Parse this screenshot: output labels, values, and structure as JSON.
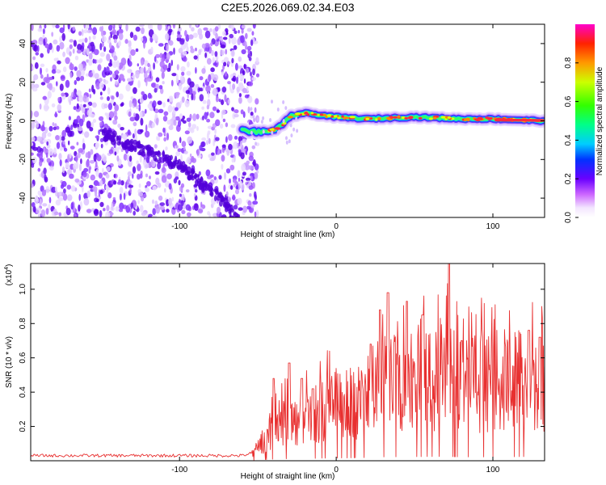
{
  "title": "C2E5.2026.069.02.34.E03",
  "chart_data": [
    {
      "type": "heatmap",
      "description_of_content": "spectrogram of frequency vs height",
      "xlabel": "Height of straight line (km)",
      "ylabel": "Frequency (Hz)",
      "xlim": [
        -195,
        133
      ],
      "ylim": [
        -50,
        50
      ],
      "xticks": [
        -100,
        0,
        100
      ],
      "yticks": [
        -40,
        -20,
        0,
        20,
        40
      ],
      "noise_region_x": [
        -195,
        -50
      ],
      "trend_line": [
        [
          -150,
          -6
        ],
        [
          -100,
          -23
        ],
        [
          -75,
          -40
        ],
        [
          -62,
          -50
        ]
      ],
      "signal_track": [
        [
          -60,
          -5
        ],
        [
          -45,
          -6
        ],
        [
          -35,
          -3
        ],
        [
          -28,
          3
        ],
        [
          -20,
          4
        ],
        [
          0,
          2
        ],
        [
          20,
          1
        ],
        [
          50,
          2
        ],
        [
          80,
          1
        ],
        [
          100,
          1
        ],
        [
          133,
          0
        ]
      ],
      "colorbar": {
        "label": "Normalized spectral amplitude",
        "range": [
          0,
          1
        ],
        "ticks": [
          "0.0",
          "0.2",
          "0.4",
          "0.6",
          "0.8"
        ]
      }
    },
    {
      "type": "line",
      "xlabel": "Height of straight line (km)",
      "ylabel": "SNR (10 * v/v)",
      "y_multiplier": "(x10",
      "y_multiplier_exp": "4",
      "y_multiplier_close": ")",
      "xlim": [
        -195,
        133
      ],
      "ylim": [
        0,
        1.15
      ],
      "xticks": [
        -100,
        0,
        100
      ],
      "yticks": [
        "0.2",
        "0.4",
        "0.6",
        "0.8",
        "1.0"
      ],
      "color": "#e83030",
      "envelope": [
        [
          -195,
          0.03
        ],
        [
          -60,
          0.03
        ],
        [
          -52,
          0.05
        ],
        [
          -45,
          0.13
        ],
        [
          -40,
          0.2
        ],
        [
          -35,
          0.24
        ],
        [
          -25,
          0.22
        ],
        [
          -20,
          0.25
        ],
        [
          -10,
          0.3
        ],
        [
          0,
          0.32
        ],
        [
          15,
          0.35
        ],
        [
          30,
          0.45
        ],
        [
          50,
          0.48
        ],
        [
          70,
          0.5
        ],
        [
          80,
          0.45
        ],
        [
          100,
          0.46
        ],
        [
          120,
          0.48
        ],
        [
          133,
          0.47
        ]
      ],
      "spikes": [
        [
          -40,
          0.48
        ],
        [
          -30,
          0.57
        ],
        [
          -22,
          0.48
        ],
        [
          -15,
          0.42
        ],
        [
          22,
          0.68
        ],
        [
          28,
          0.88
        ],
        [
          33,
          0.98
        ],
        [
          45,
          0.93
        ],
        [
          55,
          0.85
        ],
        [
          72,
          1.16
        ],
        [
          80,
          0.7
        ],
        [
          123,
          0.76
        ],
        [
          130,
          0.72
        ]
      ]
    }
  ]
}
